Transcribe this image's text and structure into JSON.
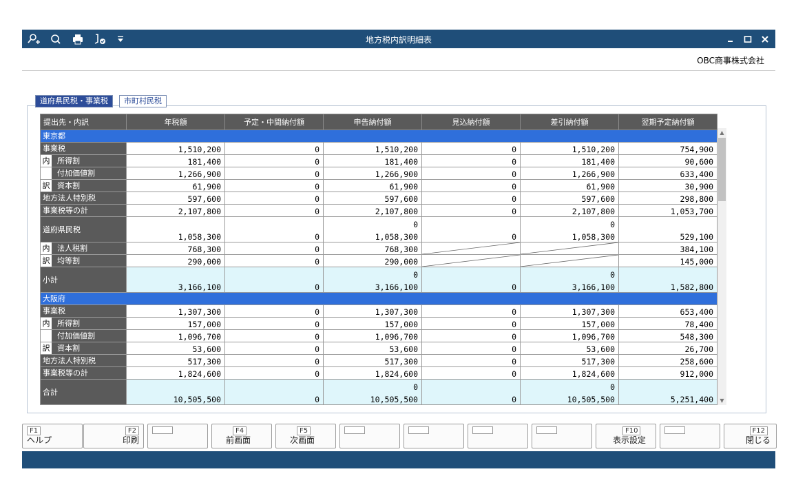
{
  "window": {
    "title": "地方税内訳明細表",
    "company": "OBC商事株式会社"
  },
  "tabs": [
    "道府県民税・事業税",
    "市町村民税"
  ],
  "columns": [
    "提出先・内訳",
    "年税額",
    "予定・中間納付額",
    "申告納付額",
    "見込納付額",
    "差引納付額",
    "翌期予定納付額"
  ],
  "sections": [
    {
      "name": "東京都",
      "rows": [
        {
          "label": "事業税",
          "values": [
            "1,510,200",
            "0",
            "1,510,200",
            "0",
            "1,510,200",
            "754,900"
          ]
        },
        {
          "label": "所得割",
          "nai": "内",
          "values": [
            "181,400",
            "0",
            "181,400",
            "0",
            "181,400",
            "90,600"
          ]
        },
        {
          "label": "付加価値割",
          "values": [
            "1,266,900",
            "0",
            "1,266,900",
            "0",
            "1,266,900",
            "633,400"
          ]
        },
        {
          "label": "資本割",
          "nai": "訳",
          "values": [
            "61,900",
            "0",
            "61,900",
            "0",
            "61,900",
            "30,900"
          ]
        },
        {
          "label": "地方法人特別税",
          "values": [
            "597,600",
            "0",
            "597,600",
            "0",
            "597,600",
            "298,800"
          ]
        },
        {
          "label": "事業税等の計",
          "values": [
            "2,107,800",
            "0",
            "2,107,800",
            "0",
            "2,107,800",
            "1,053,700"
          ]
        },
        {
          "label": "道府県民税",
          "big": true,
          "values": [
            "1,058,300",
            "0",
            "1,058,300",
            "0",
            "1,058,300",
            "529,100"
          ],
          "top": [
            "",
            "",
            "0",
            "",
            "0",
            ""
          ]
        },
        {
          "label": "法人税割",
          "nai": "内",
          "values": [
            "768,300",
            "0",
            "768,300",
            "",
            "",
            "384,100"
          ]
        },
        {
          "label": "均等割",
          "nai": "訳",
          "values": [
            "290,000",
            "0",
            "290,000",
            "",
            "",
            "145,000"
          ]
        },
        {
          "label": "小計",
          "big": true,
          "cyan": true,
          "values": [
            "3,166,100",
            "0",
            "3,166,100",
            "0",
            "3,166,100",
            "1,582,800"
          ],
          "top": [
            "",
            "",
            "0",
            "",
            "0",
            ""
          ]
        }
      ]
    },
    {
      "name": "大阪府",
      "rows": [
        {
          "label": "事業税",
          "values": [
            "1,307,300",
            "0",
            "1,307,300",
            "0",
            "1,307,300",
            "653,400"
          ]
        },
        {
          "label": "所得割",
          "nai": "内",
          "values": [
            "157,000",
            "0",
            "157,000",
            "0",
            "157,000",
            "78,400"
          ]
        },
        {
          "label": "付加価値割",
          "values": [
            "1,096,700",
            "0",
            "1,096,700",
            "0",
            "1,096,700",
            "548,300"
          ]
        },
        {
          "label": "資本割",
          "nai": "訳",
          "values": [
            "53,600",
            "0",
            "53,600",
            "0",
            "53,600",
            "26,700"
          ]
        },
        {
          "label": "地方法人特別税",
          "values": [
            "517,300",
            "0",
            "517,300",
            "0",
            "517,300",
            "258,600"
          ]
        },
        {
          "label": "事業税等の計",
          "values": [
            "1,824,600",
            "0",
            "1,824,600",
            "0",
            "1,824,600",
            "912,000"
          ]
        }
      ]
    }
  ],
  "total": {
    "label": "合計",
    "values": [
      "10,505,500",
      "0",
      "10,505,500",
      "0",
      "10,505,500",
      "5,251,400"
    ],
    "top": [
      "",
      "",
      "0",
      "",
      "0",
      ""
    ]
  },
  "fkeys": [
    {
      "key": "F1",
      "label": "ヘルプ"
    },
    {
      "key": "F2",
      "label": "印刷"
    },
    {
      "key": "",
      "label": ""
    },
    {
      "key": "F4",
      "label": "前画面"
    },
    {
      "key": "F5",
      "label": "次画面"
    },
    {
      "key": "",
      "label": ""
    },
    {
      "key": "",
      "label": ""
    },
    {
      "key": "",
      "label": ""
    },
    {
      "key": "",
      "label": ""
    },
    {
      "key": "F10",
      "label": "表示設定"
    },
    {
      "key": "",
      "label": ""
    },
    {
      "key": "F12",
      "label": "閉じる"
    }
  ],
  "icons": [
    "zoom-in-icon",
    "preview-icon",
    "print-icon",
    "pdf-sign-icon",
    "dropdown-icon"
  ]
}
